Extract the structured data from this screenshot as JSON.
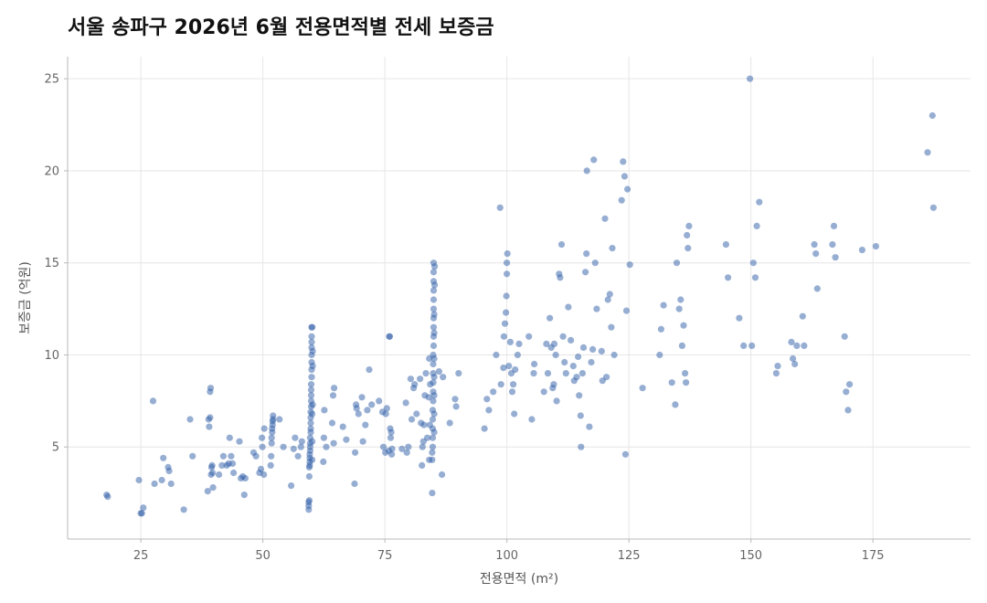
{
  "chart_data": {
    "type": "scatter",
    "title": "서울 송파구 2026년 6월 전용면적별 전세 보증금",
    "xlabel": "전용면적 (m²)",
    "ylabel": "보증금 (억원)",
    "xlim": [
      10,
      195
    ],
    "ylim": [
      0,
      26.2
    ],
    "xticks": [
      25,
      50,
      75,
      100,
      125,
      150,
      175
    ],
    "yticks": [
      5,
      10,
      15,
      20,
      25
    ],
    "grid": true,
    "legend": "none",
    "point_color": "#2f5ea8",
    "points": [
      [
        18.0,
        2.4
      ],
      [
        18.2,
        2.3
      ],
      [
        24.6,
        3.2
      ],
      [
        25.0,
        1.4
      ],
      [
        25.2,
        1.4
      ],
      [
        25.5,
        1.7
      ],
      [
        27.5,
        7.5
      ],
      [
        27.8,
        3.0
      ],
      [
        29.3,
        3.2
      ],
      [
        29.6,
        4.4
      ],
      [
        30.6,
        3.9
      ],
      [
        30.8,
        3.7
      ],
      [
        31.2,
        3.0
      ],
      [
        33.8,
        1.6
      ],
      [
        35.1,
        6.5
      ],
      [
        35.6,
        4.5
      ],
      [
        38.7,
        2.6
      ],
      [
        38.9,
        6.5
      ],
      [
        39.0,
        6.1
      ],
      [
        39.2,
        6.6
      ],
      [
        39.2,
        8.0
      ],
      [
        39.3,
        8.2
      ],
      [
        39.4,
        3.5
      ],
      [
        39.5,
        3.9
      ],
      [
        39.6,
        4.0
      ],
      [
        39.7,
        3.6
      ],
      [
        39.8,
        2.8
      ],
      [
        41.0,
        3.5
      ],
      [
        41.6,
        4.0
      ],
      [
        41.9,
        4.5
      ],
      [
        42.6,
        4.0
      ],
      [
        43.0,
        4.1
      ],
      [
        43.2,
        5.5
      ],
      [
        43.5,
        4.5
      ],
      [
        43.8,
        4.1
      ],
      [
        44.0,
        3.6
      ],
      [
        45.2,
        5.3
      ],
      [
        45.5,
        3.3
      ],
      [
        45.9,
        3.4
      ],
      [
        46.2,
        2.4
      ],
      [
        46.4,
        3.3
      ],
      [
        48.1,
        4.7
      ],
      [
        48.6,
        4.5
      ],
      [
        49.3,
        3.6
      ],
      [
        49.6,
        3.8
      ],
      [
        49.8,
        5.5
      ],
      [
        49.9,
        5.0
      ],
      [
        50.2,
        3.5
      ],
      [
        50.3,
        6.0
      ],
      [
        51.6,
        4.0
      ],
      [
        51.7,
        4.5
      ],
      [
        51.8,
        5.2
      ],
      [
        51.8,
        5.5
      ],
      [
        51.9,
        5.8
      ],
      [
        51.9,
        6.0
      ],
      [
        52.0,
        6.2
      ],
      [
        52.0,
        6.4
      ],
      [
        52.1,
        6.7
      ],
      [
        52.1,
        6.5
      ],
      [
        53.4,
        6.5
      ],
      [
        54.2,
        5.0
      ],
      [
        55.8,
        2.9
      ],
      [
        56.3,
        4.9
      ],
      [
        56.6,
        5.5
      ],
      [
        57.2,
        4.5
      ],
      [
        57.8,
        5.0
      ],
      [
        58.0,
        5.3
      ],
      [
        59.4,
        1.6
      ],
      [
        59.4,
        1.8
      ],
      [
        59.4,
        2.0
      ],
      [
        59.5,
        2.1
      ],
      [
        59.5,
        3.4
      ],
      [
        59.5,
        3.9
      ],
      [
        59.6,
        4.0
      ],
      [
        59.6,
        4.2
      ],
      [
        59.6,
        4.4
      ],
      [
        59.6,
        4.6
      ],
      [
        59.7,
        4.8
      ],
      [
        59.7,
        5.0
      ],
      [
        59.7,
        5.2
      ],
      [
        59.7,
        5.5
      ],
      [
        59.8,
        5.8
      ],
      [
        59.8,
        6.0
      ],
      [
        59.8,
        6.3
      ],
      [
        59.8,
        6.6
      ],
      [
        59.8,
        6.9
      ],
      [
        59.9,
        7.2
      ],
      [
        59.9,
        7.5
      ],
      [
        59.9,
        7.8
      ],
      [
        59.9,
        8.1
      ],
      [
        59.9,
        8.4
      ],
      [
        60.0,
        8.8
      ],
      [
        60.0,
        9.2
      ],
      [
        60.0,
        9.6
      ],
      [
        60.0,
        10.0
      ],
      [
        60.0,
        10.4
      ],
      [
        60.0,
        10.7
      ],
      [
        60.0,
        11.0
      ],
      [
        60.0,
        11.5
      ],
      [
        60.1,
        11.5
      ],
      [
        60.1,
        4.3
      ],
      [
        60.1,
        5.3
      ],
      [
        60.1,
        6.8
      ],
      [
        60.2,
        7.3
      ],
      [
        60.2,
        9.4
      ],
      [
        60.2,
        10.2
      ],
      [
        62.4,
        4.2
      ],
      [
        62.5,
        5.5
      ],
      [
        62.6,
        7.0
      ],
      [
        63.0,
        5.0
      ],
      [
        64.2,
        6.3
      ],
      [
        64.4,
        7.8
      ],
      [
        64.5,
        5.2
      ],
      [
        64.6,
        8.2
      ],
      [
        66.4,
        6.1
      ],
      [
        67.1,
        5.4
      ],
      [
        68.8,
        3.0
      ],
      [
        68.9,
        4.7
      ],
      [
        69.1,
        7.3
      ],
      [
        69.2,
        7.1
      ],
      [
        69.6,
        6.8
      ],
      [
        70.3,
        7.7
      ],
      [
        70.5,
        5.3
      ],
      [
        71.0,
        6.2
      ],
      [
        71.4,
        7.0
      ],
      [
        71.8,
        9.2
      ],
      [
        72.3,
        7.3
      ],
      [
        73.8,
        7.5
      ],
      [
        74.5,
        6.9
      ],
      [
        74.7,
        5.0
      ],
      [
        75.1,
        4.7
      ],
      [
        75.2,
        6.8
      ],
      [
        75.4,
        7.1
      ],
      [
        75.8,
        4.8
      ],
      [
        75.9,
        11.0
      ],
      [
        76.0,
        11.0
      ],
      [
        76.1,
        6.0
      ],
      [
        76.2,
        5.5
      ],
      [
        76.3,
        5.8
      ],
      [
        76.4,
        4.6
      ],
      [
        76.5,
        4.9
      ],
      [
        78.5,
        4.9
      ],
      [
        79.3,
        7.4
      ],
      [
        79.5,
        4.7
      ],
      [
        79.8,
        5.0
      ],
      [
        80.3,
        8.7
      ],
      [
        80.5,
        6.5
      ],
      [
        80.9,
        8.2
      ],
      [
        81.1,
        8.4
      ],
      [
        81.5,
        6.8
      ],
      [
        82.2,
        8.7
      ],
      [
        82.4,
        6.3
      ],
      [
        82.6,
        4.0
      ],
      [
        82.7,
        5.0
      ],
      [
        82.9,
        5.3
      ],
      [
        83.0,
        6.2
      ],
      [
        83.2,
        7.8
      ],
      [
        83.4,
        9.0
      ],
      [
        83.7,
        5.5
      ],
      [
        84.0,
        7.7
      ],
      [
        84.1,
        9.8
      ],
      [
        84.1,
        4.3
      ],
      [
        84.2,
        6.2
      ],
      [
        84.3,
        8.4
      ],
      [
        84.7,
        2.5
      ],
      [
        84.7,
        4.3
      ],
      [
        84.7,
        4.7
      ],
      [
        84.8,
        5.0
      ],
      [
        84.8,
        5.5
      ],
      [
        84.8,
        6.0
      ],
      [
        84.8,
        6.5
      ],
      [
        84.8,
        7.0
      ],
      [
        84.9,
        7.5
      ],
      [
        84.9,
        8.0
      ],
      [
        84.9,
        8.5
      ],
      [
        84.9,
        9.0
      ],
      [
        84.9,
        9.5
      ],
      [
        84.9,
        10.0
      ],
      [
        85.0,
        10.5
      ],
      [
        85.0,
        11.0
      ],
      [
        85.0,
        11.5
      ],
      [
        85.0,
        12.0
      ],
      [
        85.0,
        12.5
      ],
      [
        85.0,
        13.0
      ],
      [
        85.0,
        13.5
      ],
      [
        85.0,
        14.0
      ],
      [
        85.0,
        14.5
      ],
      [
        85.0,
        15.0
      ],
      [
        85.1,
        12.2
      ],
      [
        85.1,
        11.2
      ],
      [
        85.1,
        9.8
      ],
      [
        85.1,
        8.8
      ],
      [
        85.1,
        7.8
      ],
      [
        85.1,
        6.8
      ],
      [
        85.1,
        5.8
      ],
      [
        85.2,
        13.8
      ],
      [
        85.2,
        14.8
      ],
      [
        86.1,
        9.1
      ],
      [
        86.7,
        3.5
      ],
      [
        86.9,
        8.8
      ],
      [
        88.3,
        6.3
      ],
      [
        89.4,
        7.6
      ],
      [
        89.6,
        7.2
      ],
      [
        90.1,
        9.0
      ],
      [
        95.4,
        6.0
      ],
      [
        95.9,
        7.6
      ],
      [
        96.3,
        7.0
      ],
      [
        97.2,
        8.0
      ],
      [
        97.8,
        10.0
      ],
      [
        98.6,
        18.0
      ],
      [
        98.8,
        8.4
      ],
      [
        99.3,
        9.3
      ],
      [
        99.4,
        11.0
      ],
      [
        99.6,
        11.7
      ],
      [
        99.8,
        12.3
      ],
      [
        99.9,
        13.2
      ],
      [
        100.0,
        14.4
      ],
      [
        100.0,
        15.0
      ],
      [
        100.1,
        15.5
      ],
      [
        100.4,
        9.4
      ],
      [
        100.7,
        10.7
      ],
      [
        100.9,
        9.0
      ],
      [
        101.1,
        8.0
      ],
      [
        101.3,
        8.4
      ],
      [
        101.5,
        6.8
      ],
      [
        101.7,
        9.2
      ],
      [
        102.2,
        10.0
      ],
      [
        102.5,
        10.6
      ],
      [
        104.5,
        11.0
      ],
      [
        105.1,
        6.5
      ],
      [
        105.5,
        9.0
      ],
      [
        105.6,
        9.5
      ],
      [
        107.6,
        8.0
      ],
      [
        108.1,
        10.6
      ],
      [
        108.4,
        9.0
      ],
      [
        108.8,
        12.0
      ],
      [
        109.1,
        10.4
      ],
      [
        109.4,
        8.2
      ],
      [
        109.6,
        8.4
      ],
      [
        109.7,
        10.6
      ],
      [
        110.0,
        10.0
      ],
      [
        110.2,
        7.5
      ],
      [
        110.7,
        14.4
      ],
      [
        110.9,
        14.2
      ],
      [
        111.2,
        16.0
      ],
      [
        111.5,
        11.0
      ],
      [
        111.8,
        9.6
      ],
      [
        112.1,
        9.0
      ],
      [
        112.6,
        12.6
      ],
      [
        113.1,
        10.8
      ],
      [
        113.6,
        9.4
      ],
      [
        113.8,
        8.6
      ],
      [
        114.3,
        8.8
      ],
      [
        114.6,
        9.9
      ],
      [
        114.8,
        7.8
      ],
      [
        115.1,
        6.7
      ],
      [
        115.2,
        5.0
      ],
      [
        115.5,
        9.0
      ],
      [
        115.7,
        10.4
      ],
      [
        116.1,
        14.5
      ],
      [
        116.3,
        15.5
      ],
      [
        116.4,
        20.0
      ],
      [
        116.9,
        6.1
      ],
      [
        117.3,
        9.6
      ],
      [
        117.6,
        10.3
      ],
      [
        117.8,
        20.6
      ],
      [
        118.1,
        15.0
      ],
      [
        118.4,
        12.5
      ],
      [
        119.4,
        10.2
      ],
      [
        119.6,
        8.6
      ],
      [
        120.1,
        17.4
      ],
      [
        120.4,
        8.8
      ],
      [
        120.7,
        13.0
      ],
      [
        121.1,
        13.3
      ],
      [
        121.4,
        11.5
      ],
      [
        121.6,
        15.8
      ],
      [
        122.0,
        10.0
      ],
      [
        123.5,
        18.4
      ],
      [
        123.8,
        20.5
      ],
      [
        124.1,
        19.7
      ],
      [
        124.3,
        4.6
      ],
      [
        124.5,
        12.4
      ],
      [
        124.7,
        19.0
      ],
      [
        125.2,
        14.9
      ],
      [
        127.8,
        8.2
      ],
      [
        131.3,
        10.0
      ],
      [
        131.6,
        11.4
      ],
      [
        132.1,
        12.7
      ],
      [
        133.8,
        8.5
      ],
      [
        134.5,
        7.3
      ],
      [
        134.8,
        15.0
      ],
      [
        135.3,
        12.5
      ],
      [
        135.6,
        13.0
      ],
      [
        135.9,
        10.5
      ],
      [
        136.2,
        11.6
      ],
      [
        136.5,
        9.0
      ],
      [
        136.7,
        8.5
      ],
      [
        136.9,
        16.5
      ],
      [
        137.1,
        15.8
      ],
      [
        137.3,
        17.0
      ],
      [
        144.9,
        16.0
      ],
      [
        145.3,
        14.2
      ],
      [
        147.6,
        12.0
      ],
      [
        148.5,
        10.5
      ],
      [
        149.8,
        25.0
      ],
      [
        150.2,
        10.5
      ],
      [
        150.5,
        15.0
      ],
      [
        150.9,
        14.2
      ],
      [
        151.2,
        17.0
      ],
      [
        151.7,
        18.3
      ],
      [
        155.2,
        9.0
      ],
      [
        155.5,
        9.4
      ],
      [
        158.3,
        10.7
      ],
      [
        158.6,
        9.8
      ],
      [
        159.0,
        9.5
      ],
      [
        159.4,
        10.5
      ],
      [
        160.6,
        12.1
      ],
      [
        160.9,
        10.5
      ],
      [
        163.0,
        16.0
      ],
      [
        163.3,
        15.5
      ],
      [
        163.6,
        13.6
      ],
      [
        166.7,
        16.0
      ],
      [
        167.0,
        17.0
      ],
      [
        167.3,
        15.3
      ],
      [
        169.2,
        11.0
      ],
      [
        169.5,
        8.0
      ],
      [
        169.9,
        7.0
      ],
      [
        170.2,
        8.4
      ],
      [
        172.8,
        15.7
      ],
      [
        175.6,
        15.9
      ],
      [
        186.2,
        21.0
      ],
      [
        187.2,
        23.0
      ],
      [
        187.4,
        18.0
      ]
    ]
  }
}
